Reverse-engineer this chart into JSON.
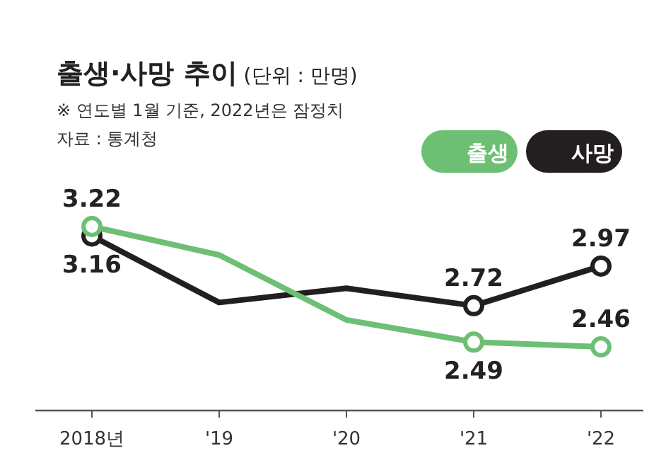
{
  "chart_data": {
    "type": "line",
    "title": "**출생·사망 추이** (단위 : 만명)",
    "annotations": [
      "※ 연도별 1월 기준, 2022년은 잠정치",
      "자료 : 통계청"
    ],
    "categories": [
      "2018년",
      "'19",
      "'20",
      "'21",
      "'22"
    ],
    "series": [
      {
        "name": "사망",
        "color": "#231f20",
        "values": [
          3.16,
          2.74,
          2.83,
          2.72,
          2.97
        ],
        "value_labels": [
          "3.16",
          null,
          null,
          "2.72",
          "2.97"
        ]
      },
      {
        "name": "출생",
        "color": "#6dbf73",
        "values": [
          3.22,
          3.04,
          2.63,
          2.49,
          2.46
        ],
        "value_labels": [
          "3.22",
          null,
          null,
          "2.49",
          "2.46"
        ]
      }
    ],
    "legend": "top right",
    "marker": "circle",
    "line_style": "solid"
  }
}
